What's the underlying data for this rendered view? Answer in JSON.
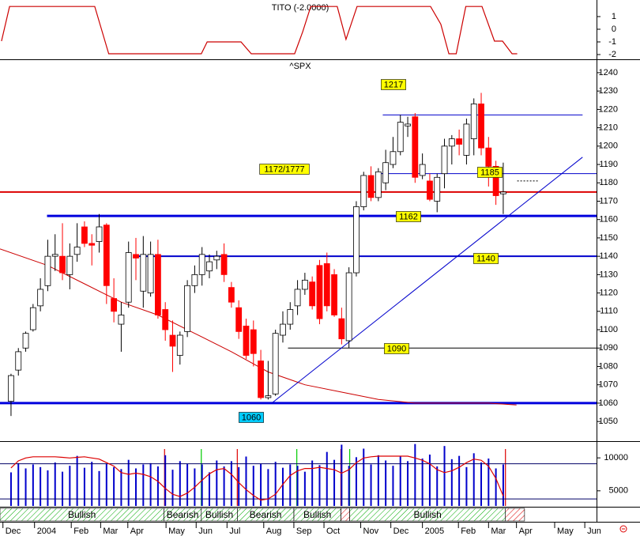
{
  "chart_data": [
    {
      "type": "line",
      "title": "TITO (-2.0000)",
      "color": "#cc0000",
      "x": [
        -1.3,
        -0.2,
        11.4,
        13.3,
        25.9,
        26.7,
        31.3,
        32.7,
        38.6,
        39.7,
        40.8,
        44.4,
        45.6,
        47.1,
        57.1,
        58.5,
        59.6,
        60.6,
        61.9,
        64.1,
        65.8,
        66.9,
        68.2,
        68.9
      ],
      "values": [
        -0.94,
        1.8,
        1.8,
        -1.94,
        -1.94,
        -1,
        -1,
        -1.94,
        -1.94,
        -0.2,
        1.8,
        1.8,
        -0.8,
        1.8,
        1.8,
        0.4,
        -1.94,
        -1.94,
        1.8,
        1.8,
        -0.94,
        -0.94,
        -1.94,
        -1.94
      ],
      "xlim": [
        -1.5,
        79.7
      ],
      "ylim": [
        -2.375,
        2.31
      ],
      "yticks": [
        1,
        0,
        -1,
        -2
      ]
    },
    {
      "type": "candlestick",
      "title": "^SPX",
      "up_color": "#ffffff",
      "down_color": "#ff0000",
      "x": [
        0,
        1,
        2,
        3,
        4,
        5,
        6,
        7,
        8,
        9,
        10,
        11,
        12,
        13,
        14,
        15,
        16,
        17,
        18,
        19,
        20,
        21,
        22,
        23,
        24,
        25,
        26,
        27,
        28,
        29,
        30,
        31,
        32,
        33,
        34,
        35,
        36,
        37,
        38,
        39,
        40,
        41,
        42,
        43,
        44,
        45,
        46,
        47,
        48,
        49,
        50,
        51,
        52,
        53,
        54,
        55,
        56,
        57,
        58,
        59,
        60,
        61,
        62,
        63,
        64,
        65,
        66,
        67
      ],
      "open": [
        1061,
        1078,
        1090,
        1100,
        1113,
        1124,
        1140,
        1140,
        1130,
        1141,
        1156,
        1147,
        1148,
        1157,
        1117,
        1103,
        1115,
        1141,
        1121,
        1120,
        1141,
        1111,
        1097,
        1086,
        1099,
        1124,
        1130,
        1132,
        1138,
        1141,
        1123,
        1112,
        1102,
        1100,
        1083,
        1063,
        1065,
        1097,
        1103,
        1113,
        1122,
        1126,
        1135,
        1136,
        1130,
        1106,
        1094,
        1131,
        1167,
        1184,
        1172,
        1180,
        1190,
        1197,
        1211,
        1216,
        1184,
        1181,
        1170,
        1185,
        1200,
        1204,
        1195,
        1204,
        1223,
        1199,
        1189,
        1174
      ],
      "high": [
        1076,
        1090,
        1099,
        1114,
        1128,
        1149,
        1152,
        1158,
        1147,
        1158,
        1159,
        1152,
        1163,
        1158,
        1128,
        1115,
        1148,
        1150,
        1151,
        1148,
        1149,
        1115,
        1105,
        1099,
        1127,
        1135,
        1145,
        1141,
        1143,
        1147,
        1126,
        1116,
        1106,
        1105,
        1089,
        1083,
        1100,
        1110,
        1115,
        1127,
        1131,
        1129,
        1138,
        1142,
        1133,
        1112,
        1134,
        1170,
        1186,
        1189,
        1188,
        1198,
        1205,
        1217,
        1216,
        1218,
        1196,
        1185,
        1185,
        1204,
        1206,
        1209,
        1215,
        1226,
        1229,
        1205,
        1192,
        1191
      ],
      "low": [
        1053,
        1075,
        1088,
        1099,
        1110,
        1121,
        1132,
        1127,
        1122,
        1137,
        1145,
        1135,
        1142,
        1114,
        1104,
        1088,
        1112,
        1127,
        1112,
        1118,
        1106,
        1094,
        1077,
        1081,
        1096,
        1120,
        1124,
        1128,
        1133,
        1126,
        1112,
        1095,
        1084,
        1080,
        1062,
        1062,
        1064,
        1093,
        1100,
        1108,
        1119,
        1111,
        1103,
        1110,
        1107,
        1092,
        1090,
        1129,
        1165,
        1170,
        1170,
        1176,
        1188,
        1195,
        1205,
        1180,
        1182,
        1170,
        1164,
        1177,
        1190,
        1195,
        1190,
        1195,
        1195,
        1178,
        1168,
        1163
      ],
      "close": [
        1075,
        1088,
        1098,
        1112,
        1122,
        1140,
        1141,
        1131,
        1140,
        1145,
        1147,
        1146,
        1156,
        1124,
        1110,
        1108,
        1142,
        1139,
        1141,
        1141,
        1108,
        1100,
        1091,
        1097,
        1124,
        1130,
        1141,
        1137,
        1140,
        1130,
        1115,
        1099,
        1086,
        1087,
        1063,
        1064,
        1098,
        1103,
        1111,
        1122,
        1127,
        1113,
        1106,
        1113,
        1108,
        1095,
        1131,
        1167,
        1184,
        1172,
        1186,
        1191,
        1197,
        1213,
        1212,
        1183,
        1190,
        1171,
        1183,
        1200,
        1204,
        1201,
        1212,
        1223,
        1199,
        1189,
        1173,
        1175
      ],
      "xlim": [
        -1.5,
        79.7
      ],
      "ylim": [
        1039.3,
        1246
      ],
      "yticks": [
        1050,
        1060,
        1070,
        1080,
        1090,
        1100,
        1110,
        1120,
        1130,
        1140,
        1150,
        1160,
        1170,
        1180,
        1190,
        1200,
        1210,
        1220,
        1230,
        1240
      ],
      "levels": [
        {
          "value": 1217,
          "start": 50.6,
          "end": 77.8,
          "color": "#0000cc",
          "width": 1
        },
        {
          "value": 1185,
          "start": 49.6,
          "end": 79.7,
          "color": "#0000cc",
          "width": 1
        },
        {
          "value": 1175,
          "start": -1.5,
          "end": 79.7,
          "color": "#dd0000",
          "width": 2
        },
        {
          "value": 1162,
          "start": 4.9,
          "end": 79.7,
          "color": "#0000dd",
          "width": 3
        },
        {
          "value": 1140,
          "start": 16.8,
          "end": 79.7,
          "color": "#0000cc",
          "width": 2
        },
        {
          "value": 1090,
          "start": 37.7,
          "end": 79.7,
          "color": "#000000",
          "width": 1
        },
        {
          "value": 1060,
          "start": -1.5,
          "end": 79.7,
          "color": "#0000dd",
          "width": 3
        }
      ],
      "trendline": {
        "x": [
          35.5,
          77.8
        ],
        "values": [
          1060,
          1194
        ],
        "color": "#0000cc"
      },
      "dashed": {
        "x": [
          68.9,
          71.8
        ],
        "values": [
          1181,
          1181
        ],
        "color": "#000000"
      },
      "ma": {
        "x": [
          -1.5,
          5,
          10,
          15,
          20,
          25,
          30,
          35,
          40,
          45,
          50,
          55,
          60,
          65,
          68.8
        ],
        "values": [
          1144,
          1135,
          1125,
          1115,
          1108,
          1098,
          1088,
          1077,
          1070,
          1066,
          1062,
          1060,
          1060,
          1060,
          1059
        ],
        "color": "#cc0000"
      },
      "tags": [
        {
          "text": "1217",
          "color": "#ffff00"
        },
        {
          "text": "1172/1777",
          "color": "#ffff00"
        },
        {
          "text": "1185",
          "color": "#ffff00"
        },
        {
          "text": "1162",
          "color": "#ffff00"
        },
        {
          "text": "1140",
          "color": "#ffff00"
        },
        {
          "text": "1090",
          "color": "#ffff00"
        },
        {
          "text": "1060",
          "color": "#00ccff"
        }
      ]
    },
    {
      "type": "bar",
      "color": "#0000cc",
      "xlim": [
        -1.5,
        79.7
      ],
      "ylim": [
        2700,
        12300
      ],
      "yticks": [
        10000,
        5000
      ],
      "values": [
        7800,
        9200,
        8400,
        9000,
        8600,
        8100,
        9300,
        7900,
        8800,
        10300,
        8500,
        9400,
        8000,
        9100,
        8600,
        8300,
        9700,
        8400,
        9000,
        9200,
        8700,
        10400,
        8200,
        9500,
        9100,
        8400,
        9000,
        7800,
        9600,
        8700,
        9500,
        8600,
        10200,
        8800,
        9100,
        8300,
        9400,
        8500,
        9000,
        8800,
        7900,
        9600,
        8900,
        10900,
        9700,
        12000,
        8800,
        10100,
        11400,
        9000,
        10400,
        9600,
        8800,
        10200,
        9500,
        12100,
        9900,
        10500,
        8700,
        11800,
        9800,
        10300,
        8600,
        10700,
        9300,
        9900,
        8400,
        9000
      ],
      "y2lim": [
        8,
        116
      ],
      "levels": [
        80,
        20
      ],
      "stochastic": {
        "color": "#dd0000",
        "values": [
          73,
          85,
          90,
          92,
          92,
          92,
          92,
          91,
          90,
          91,
          92,
          90,
          88,
          82,
          76,
          65,
          62,
          64,
          62,
          58,
          50,
          38,
          28,
          24,
          30,
          40,
          52,
          63,
          70,
          72,
          62,
          48,
          36,
          26,
          18,
          20,
          28,
          45,
          60,
          68,
          72,
          72,
          74,
          72,
          70,
          64,
          70,
          82,
          90,
          92,
          93,
          93,
          93,
          93,
          93,
          90,
          86,
          80,
          70,
          65,
          68,
          74,
          82,
          88,
          86,
          76,
          55,
          25
        ]
      },
      "signals": [
        {
          "x": 25.9,
          "color": "#00cc00"
        },
        {
          "x": 38.9,
          "color": "#00cc00"
        },
        {
          "x": 46.1,
          "color": "#00cc00"
        },
        {
          "x": 20.9,
          "color": "#dd0000"
        },
        {
          "x": 30.8,
          "color": "#dd0000"
        },
        {
          "x": 44.9,
          "color": "#dd0000"
        },
        {
          "x": 67.3,
          "color": "#dd0000"
        }
      ],
      "sentiment": [
        {
          "label": "Bullish",
          "start": -1.5,
          "end": 20.8,
          "color": "#00aa00"
        },
        {
          "label": "Bearish",
          "start": 20.8,
          "end": 25.9,
          "color": "#00aa00"
        },
        {
          "label": "Bullish",
          "start": 25.9,
          "end": 30.8,
          "color": "#00aa00"
        },
        {
          "label": "Bearish",
          "start": 30.8,
          "end": 38.5,
          "color": "#00aa00"
        },
        {
          "label": "Bullish",
          "start": 38.5,
          "end": 44.9,
          "color": "#00aa00"
        },
        {
          "start": 44.9,
          "end": 46.1,
          "color": "#dd0000"
        },
        {
          "label": "Bullish",
          "start": 46.1,
          "end": 67.3,
          "color": "#00aa00"
        },
        {
          "start": 67.3,
          "end": 69.9,
          "color": "#dd0000"
        }
      ],
      "xticks": [
        {
          "value": -1.1,
          "label": "Dec"
        },
        {
          "value": 3.2,
          "label": "2004"
        },
        {
          "value": 8.2,
          "label": "Feb"
        },
        {
          "value": 12.2,
          "label": "Mar"
        },
        {
          "value": 15.9,
          "label": "Apr"
        },
        {
          "value": 21.1,
          "label": "May"
        },
        {
          "value": 25.2,
          "label": "Jun"
        },
        {
          "value": 29.4,
          "label": "Jul"
        },
        {
          "value": 34.4,
          "label": "Aug"
        },
        {
          "value": 38.5,
          "label": "Sep"
        },
        {
          "value": 42.6,
          "label": "Oct"
        },
        {
          "value": 47.6,
          "label": "Nov"
        },
        {
          "value": 51.7,
          "label": "Dec"
        },
        {
          "value": 56.0,
          "label": "2005"
        },
        {
          "value": 60.9,
          "label": "Feb"
        },
        {
          "value": 65.0,
          "label": "Mar"
        },
        {
          "value": 68.8,
          "label": "Apr"
        },
        {
          "value": 74.0,
          "label": "May"
        },
        {
          "value": 78.1,
          "label": "Jun"
        }
      ]
    }
  ]
}
